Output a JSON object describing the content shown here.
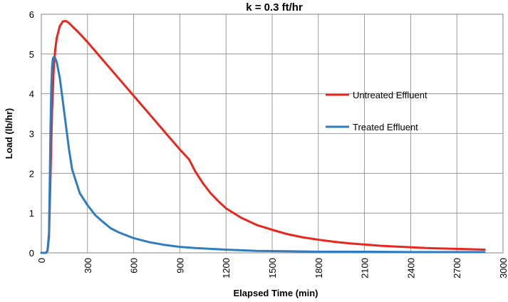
{
  "chart_data": {
    "type": "line",
    "title": "k = 0.3 ft/hr",
    "xlabel": "Elapsed Time (min)",
    "ylabel": "Load (lb/hr)",
    "xlim": [
      0,
      3000
    ],
    "ylim": [
      0,
      6
    ],
    "x_ticks": [
      0,
      300,
      600,
      900,
      1200,
      1500,
      1800,
      2100,
      2400,
      2700,
      3000
    ],
    "y_ticks": [
      0,
      1,
      2,
      3,
      4,
      5,
      6
    ],
    "grid": true,
    "legend_position": "right",
    "series": [
      {
        "name": "Untreated Effluent",
        "color": "#e8261e",
        "x": [
          0,
          30,
          40,
          50,
          60,
          70,
          80,
          90,
          100,
          120,
          140,
          160,
          180,
          200,
          240,
          300,
          400,
          500,
          600,
          700,
          800,
          900,
          960,
          1000,
          1050,
          1100,
          1150,
          1200,
          1300,
          1400,
          1500,
          1600,
          1700,
          1800,
          1900,
          2000,
          2100,
          2200,
          2300,
          2400,
          2500,
          2600,
          2700,
          2800,
          2880
        ],
        "y": [
          0,
          0,
          0.05,
          0.4,
          2.0,
          3.6,
          4.6,
          5.1,
          5.4,
          5.7,
          5.82,
          5.83,
          5.78,
          5.7,
          5.55,
          5.3,
          4.85,
          4.4,
          3.95,
          3.5,
          3.05,
          2.6,
          2.35,
          2.05,
          1.75,
          1.5,
          1.3,
          1.12,
          0.88,
          0.7,
          0.58,
          0.47,
          0.39,
          0.33,
          0.28,
          0.24,
          0.21,
          0.18,
          0.16,
          0.14,
          0.12,
          0.11,
          0.1,
          0.09,
          0.08
        ]
      },
      {
        "name": "Treated Effluent",
        "color": "#2f7dc1",
        "x": [
          0,
          30,
          40,
          50,
          55,
          60,
          65,
          70,
          75,
          80,
          90,
          100,
          110,
          120,
          140,
          160,
          180,
          200,
          250,
          300,
          350,
          400,
          450,
          500,
          600,
          700,
          800,
          900,
          1000,
          1200,
          1400,
          1600,
          1800,
          2000,
          2400,
          2880
        ],
        "y": [
          0,
          0,
          0.05,
          0.5,
          1.8,
          3.2,
          4.2,
          4.7,
          4.88,
          4.92,
          4.9,
          4.8,
          4.6,
          4.4,
          3.8,
          3.2,
          2.6,
          2.1,
          1.5,
          1.2,
          0.95,
          0.78,
          0.62,
          0.52,
          0.37,
          0.27,
          0.2,
          0.15,
          0.12,
          0.08,
          0.05,
          0.04,
          0.03,
          0.03,
          0.02,
          0.02
        ]
      }
    ]
  }
}
